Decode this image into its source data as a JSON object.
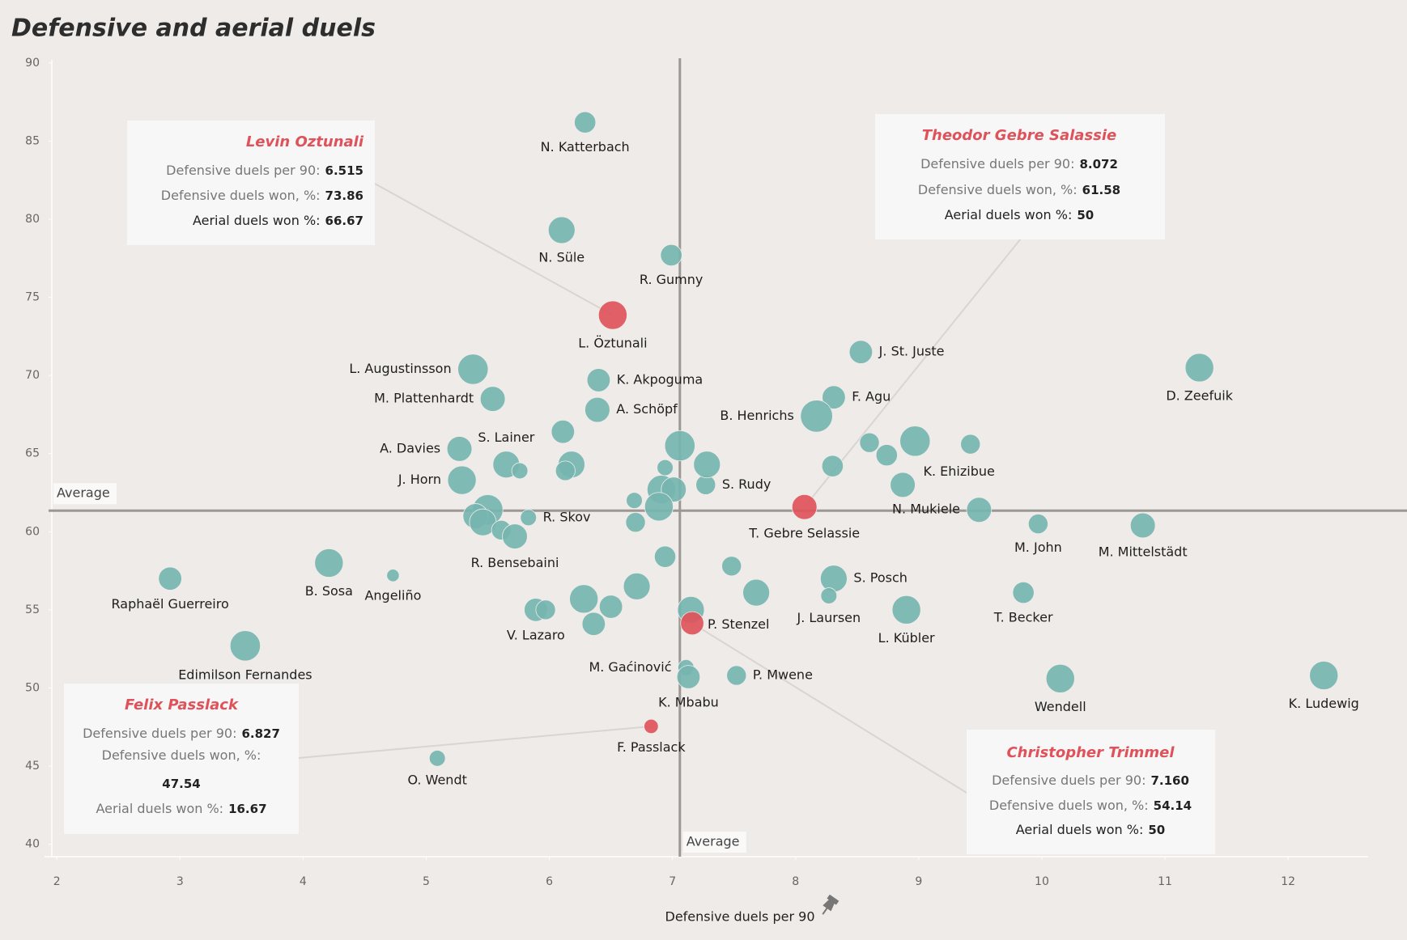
{
  "chart_data": {
    "type": "scatter",
    "title": "Defensive and aerial duels",
    "x_label": "Defensive duels per 90",
    "xlim": [
      1.9,
      12.65
    ],
    "ylim": [
      39.2,
      90.2
    ],
    "xticks": [
      2,
      3,
      4,
      5,
      6,
      7,
      8,
      9,
      10,
      11,
      12
    ],
    "yticks": [
      40,
      45,
      50,
      55,
      60,
      65,
      70,
      75,
      80,
      85,
      90
    ],
    "average_x": 7.06,
    "average_y": 61.35,
    "average_label": "Average",
    "series": [
      {
        "color": "#76b5b0",
        "points": [
          {
            "name": "N. Katterbach",
            "x": 6.29,
            "y": 86.2,
            "size": 12
          },
          {
            "name": "N. Süle",
            "x": 6.1,
            "y": 79.3,
            "size": 15
          },
          {
            "name": "R. Gumny",
            "x": 6.99,
            "y": 77.7,
            "size": 12
          },
          {
            "name": "J. St. Juste",
            "x": 8.53,
            "y": 71.5,
            "size": 13
          },
          {
            "name": "D. Zeefuik",
            "x": 11.28,
            "y": 70.5,
            "size": 16
          },
          {
            "name": "L. Augustinsson",
            "x": 5.38,
            "y": 70.4,
            "size": 17
          },
          {
            "name": "K. Akpoguma",
            "x": 6.4,
            "y": 69.7,
            "size": 13
          },
          {
            "name": "M. Plattenhardt",
            "x": 5.54,
            "y": 68.5,
            "size": 14
          },
          {
            "name": "F. Agu",
            "x": 8.31,
            "y": 68.6,
            "size": 13
          },
          {
            "name": "A. Schöpf",
            "x": 6.39,
            "y": 67.8,
            "size": 14
          },
          {
            "name": "B. Henrichs",
            "x": 8.17,
            "y": 67.4,
            "size": 18
          },
          {
            "name": null,
            "x": 6.11,
            "y": 66.4,
            "size": 13
          },
          {
            "name": "A. Davies",
            "x": 5.27,
            "y": 65.3,
            "size": 14
          },
          {
            "name": "S. Lainer",
            "x": 5.65,
            "y": 64.3,
            "size": 15
          },
          {
            "name": null,
            "x": 5.76,
            "y": 63.9,
            "size": 9
          },
          {
            "name": null,
            "x": 7.06,
            "y": 65.5,
            "size": 17
          },
          {
            "name": null,
            "x": 8.6,
            "y": 65.7,
            "size": 11
          },
          {
            "name": null,
            "x": 8.97,
            "y": 65.8,
            "size": 17
          },
          {
            "name": null,
            "x": 9.42,
            "y": 65.6,
            "size": 11
          },
          {
            "name": null,
            "x": 8.74,
            "y": 64.9,
            "size": 12
          },
          {
            "name": null,
            "x": 8.3,
            "y": 64.2,
            "size": 12
          },
          {
            "name": "S. Rudy",
            "x": 7.27,
            "y": 63.0,
            "size": 11
          },
          {
            "name": null,
            "x": 7.28,
            "y": 64.3,
            "size": 15
          },
          {
            "name": null,
            "x": 6.94,
            "y": 64.1,
            "size": 9
          },
          {
            "name": null,
            "x": 6.18,
            "y": 64.3,
            "size": 15
          },
          {
            "name": null,
            "x": 6.13,
            "y": 63.9,
            "size": 11
          },
          {
            "name": "J. Horn",
            "x": 5.29,
            "y": 63.3,
            "size": 16
          },
          {
            "name": "K. Ehizibue",
            "x": 8.87,
            "y": 63.0,
            "size": 14
          },
          {
            "name": null,
            "x": 6.91,
            "y": 62.7,
            "size": 16
          },
          {
            "name": null,
            "x": 7.01,
            "y": 62.7,
            "size": 14
          },
          {
            "name": null,
            "x": 6.69,
            "y": 62.0,
            "size": 9
          },
          {
            "name": null,
            "x": 6.89,
            "y": 61.6,
            "size": 16
          },
          {
            "name": "N. Mukiele",
            "x": 9.49,
            "y": 61.4,
            "size": 14
          },
          {
            "name": null,
            "x": 5.5,
            "y": 61.4,
            "size": 17
          },
          {
            "name": null,
            "x": 5.4,
            "y": 61.0,
            "size": 14
          },
          {
            "name": null,
            "x": 5.46,
            "y": 60.6,
            "size": 15
          },
          {
            "name": "R. Skov",
            "x": 5.83,
            "y": 60.9,
            "size": 9
          },
          {
            "name": null,
            "x": 5.61,
            "y": 60.1,
            "size": 11
          },
          {
            "name": "R. Bensebaini",
            "x": 5.72,
            "y": 59.7,
            "size": 14
          },
          {
            "name": null,
            "x": 6.7,
            "y": 60.6,
            "size": 11
          },
          {
            "name": "M. John",
            "x": 9.97,
            "y": 60.5,
            "size": 11
          },
          {
            "name": "M. Mittelstädt",
            "x": 10.82,
            "y": 60.4,
            "size": 14
          },
          {
            "name": null,
            "x": 6.94,
            "y": 58.4,
            "size": 12
          },
          {
            "name": null,
            "x": 7.48,
            "y": 57.8,
            "size": 11
          },
          {
            "name": "Raphaël Guerreiro",
            "x": 2.92,
            "y": 57.0,
            "size": 13
          },
          {
            "name": "B. Sosa",
            "x": 4.21,
            "y": 58.0,
            "size": 16
          },
          {
            "name": "Angeliño",
            "x": 4.73,
            "y": 57.2,
            "size": 7
          },
          {
            "name": "S. Posch",
            "x": 8.31,
            "y": 57.0,
            "size": 15
          },
          {
            "name": null,
            "x": 6.71,
            "y": 56.5,
            "size": 15
          },
          {
            "name": null,
            "x": 7.68,
            "y": 56.1,
            "size": 15
          },
          {
            "name": "J. Laursen",
            "x": 8.27,
            "y": 55.9,
            "size": 9
          },
          {
            "name": null,
            "x": 6.28,
            "y": 55.7,
            "size": 16
          },
          {
            "name": null,
            "x": 6.5,
            "y": 55.2,
            "size": 13
          },
          {
            "name": "V. Lazaro",
            "x": 5.89,
            "y": 55.0,
            "size": 13
          },
          {
            "name": null,
            "x": 5.97,
            "y": 55.0,
            "size": 11
          },
          {
            "name": "P. Stenzel",
            "x": 7.15,
            "y": 55.0,
            "size": 15
          },
          {
            "name": "L. Kübler",
            "x": 8.9,
            "y": 55.0,
            "size": 16
          },
          {
            "name": "T. Becker",
            "x": 9.85,
            "y": 56.1,
            "size": 12
          },
          {
            "name": null,
            "x": 6.36,
            "y": 54.1,
            "size": 13
          },
          {
            "name": "Edimilson Fernandes",
            "x": 3.53,
            "y": 52.7,
            "size": 17
          },
          {
            "name": "M. Gaćinović",
            "x": 7.11,
            "y": 51.3,
            "size": 9
          },
          {
            "name": "K. Mbabu",
            "x": 7.13,
            "y": 50.7,
            "size": 13
          },
          {
            "name": "P. Mwene",
            "x": 7.52,
            "y": 50.8,
            "size": 11
          },
          {
            "name": "Wendell",
            "x": 10.15,
            "y": 50.6,
            "size": 16
          },
          {
            "name": "K. Ludewig",
            "x": 12.29,
            "y": 50.8,
            "size": 16
          },
          {
            "name": "O. Wendt",
            "x": 5.09,
            "y": 45.5,
            "size": 9
          }
        ]
      },
      {
        "color": "#e0525a",
        "points": [
          {
            "name": "L. Öztunali",
            "x": 6.515,
            "y": 73.86,
            "size": 16
          },
          {
            "name": "T. Gebre Selassie",
            "x": 8.072,
            "y": 61.58,
            "size": 14
          },
          {
            "name": "F. Passlack",
            "x": 6.827,
            "y": 47.54,
            "size": 8
          },
          {
            "name": null,
            "x": 7.16,
            "y": 54.14,
            "size": 13
          }
        ]
      }
    ],
    "annotations": [
      {
        "title": "Levin Oztunali",
        "rows": [
          {
            "label": "Defensive duels per 90:",
            "value": "6.515"
          },
          {
            "label": "Defensive duels won, %:",
            "value": "73.86"
          },
          {
            "label": "Aerial duels won %:",
            "value": "66.67"
          }
        ]
      },
      {
        "title": "Theodor Gebre Salassie",
        "rows": [
          {
            "label": "Defensive duels per 90:",
            "value": "8.072"
          },
          {
            "label": "Defensive duels won, %:",
            "value": "61.58"
          },
          {
            "label": "Aerial duels won %:",
            "value": "50"
          }
        ]
      },
      {
        "title": "Felix Passlack",
        "rows": [
          {
            "label": "Defensive duels per 90:",
            "value": "6.827"
          },
          {
            "label": "Defensive duels won, %:",
            "value": "47.54"
          },
          {
            "label": "Aerial duels won %:",
            "value": "16.67"
          }
        ]
      },
      {
        "title": "Christopher Trimmel",
        "rows": [
          {
            "label": "Defensive duels per 90:",
            "value": "7.160"
          },
          {
            "label": "Defensive duels won, %:",
            "value": "54.14"
          },
          {
            "label": "Aerial duels won %:",
            "value": "50"
          }
        ]
      }
    ]
  }
}
